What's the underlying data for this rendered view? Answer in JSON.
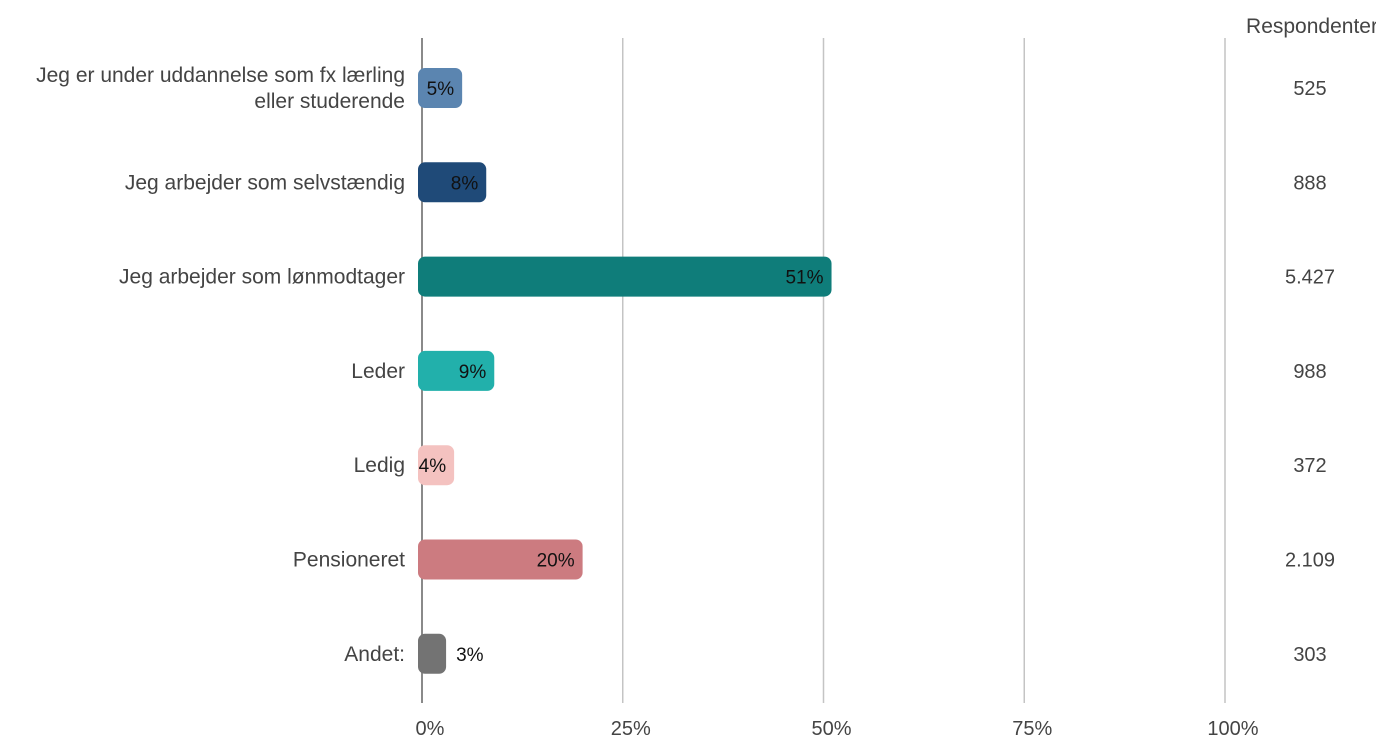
{
  "chart_data": {
    "type": "bar",
    "orientation": "horizontal",
    "categories": [
      "Jeg er under uddannelse som fx lærling eller studerende",
      "Jeg arbejder som selvstændig",
      "Jeg arbejder som lønmodtager",
      "Leder",
      "Ledig",
      "Pensioneret",
      "Andet:"
    ],
    "values": [
      5,
      8,
      51,
      9,
      4,
      20,
      3
    ],
    "value_labels": [
      "5%",
      "8%",
      "51%",
      "9%",
      "4%",
      "20%",
      "3%"
    ],
    "respondents_header": "Respondenter",
    "respondents": [
      "525",
      "888",
      "5.427",
      "988",
      "372",
      "2.109",
      "303"
    ],
    "colors": [
      "#5b85b0",
      "#1f4a78",
      "#0f7d7a",
      "#22b0ab",
      "#f4c2c0",
      "#cc7b80",
      "#737373"
    ],
    "xlim": [
      0,
      100
    ],
    "xticks": [
      0,
      25,
      50,
      75,
      100
    ],
    "xtick_labels": [
      "0%",
      "25%",
      "50%",
      "75%",
      "100%"
    ],
    "grid": "vertical",
    "title": "",
    "xlabel": "",
    "ylabel": ""
  }
}
